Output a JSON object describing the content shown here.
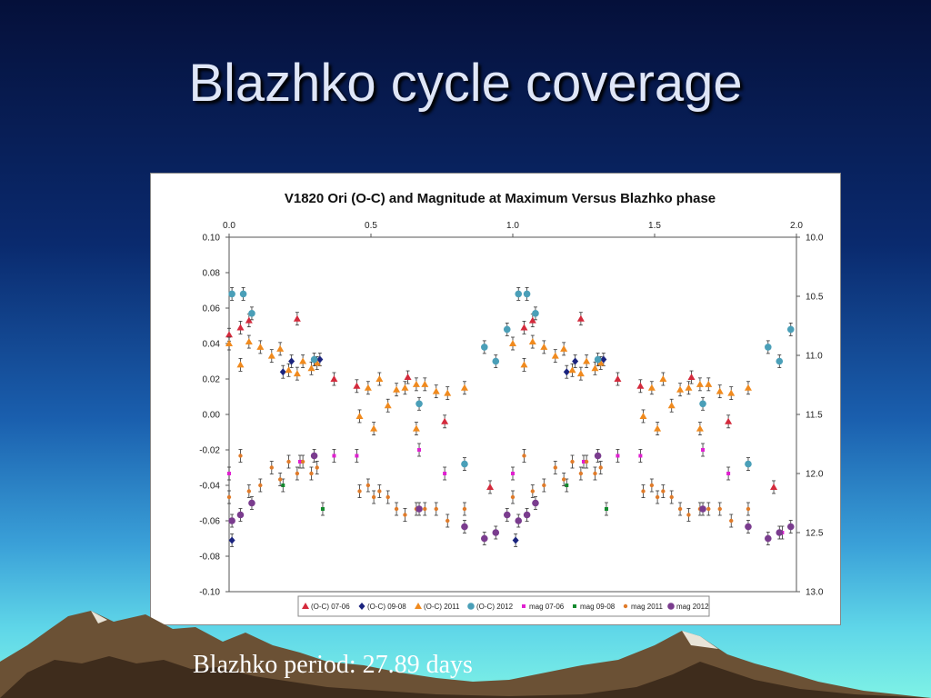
{
  "slide": {
    "title": "Blazhko cycle coverage",
    "caption": "Blazhko period: 27.89 days"
  },
  "chart_data": {
    "type": "scatter",
    "title": "V1820 Ori (O-C) and Magnitude at Maximum Versus Blazhko phase",
    "x_axis": {
      "position": "top",
      "range": [
        0,
        2.0
      ],
      "ticks": [
        "0.0",
        "0.5",
        "1.0",
        "1.5",
        "2.0"
      ]
    },
    "y_left": {
      "range": [
        -0.1,
        0.1
      ],
      "ticks": [
        "0.10",
        "0.08",
        "0.06",
        "0.04",
        "0.02",
        "0.00",
        "-0.02",
        "-0.04",
        "-0.06",
        "-0.08",
        "-0.10"
      ]
    },
    "y_right": {
      "range": [
        10.0,
        13.0
      ],
      "inverted": true,
      "ticks": [
        "10.0",
        "10.5",
        "11.0",
        "11.5",
        "12.0",
        "12.5",
        "13.0"
      ]
    },
    "legend_position": "bottom",
    "grid": false,
    "series": [
      {
        "name": "(O-C) 07-06",
        "axis": "left",
        "marker": "triangle",
        "color": "#d42a3c",
        "points": [
          [
            0.0,
            0.045
          ],
          [
            0.04,
            0.049
          ],
          [
            0.07,
            0.053
          ],
          [
            0.24,
            0.054
          ],
          [
            0.37,
            0.02
          ],
          [
            0.45,
            0.016
          ],
          [
            0.63,
            0.021
          ],
          [
            0.76,
            -0.004
          ],
          [
            0.92,
            -0.041
          ],
          [
            1.04,
            0.049
          ],
          [
            1.07,
            0.053
          ],
          [
            1.24,
            0.054
          ],
          [
            1.37,
            0.02
          ],
          [
            1.45,
            0.016
          ],
          [
            1.63,
            0.021
          ],
          [
            1.76,
            -0.004
          ],
          [
            1.92,
            -0.041
          ]
        ]
      },
      {
        "name": "(O-C) 09-08",
        "axis": "left",
        "marker": "diamond",
        "color": "#1a237e",
        "points": [
          [
            0.01,
            -0.071
          ],
          [
            0.19,
            0.024
          ],
          [
            0.22,
            0.03
          ],
          [
            0.32,
            0.031
          ],
          [
            1.01,
            -0.071
          ],
          [
            1.19,
            0.024
          ],
          [
            1.22,
            0.03
          ],
          [
            1.32,
            0.031
          ]
        ]
      },
      {
        "name": "(O-C) 2011",
        "axis": "left",
        "marker": "triangle",
        "color": "#f08a1e",
        "points": [
          [
            0.0,
            0.04
          ],
          [
            0.04,
            0.028
          ],
          [
            0.07,
            0.041
          ],
          [
            0.11,
            0.038
          ],
          [
            0.15,
            0.033
          ],
          [
            0.18,
            0.037
          ],
          [
            0.21,
            0.025
          ],
          [
            0.24,
            0.023
          ],
          [
            0.26,
            0.03
          ],
          [
            0.29,
            0.026
          ],
          [
            0.31,
            0.029
          ],
          [
            0.46,
            -0.001
          ],
          [
            0.49,
            0.015
          ],
          [
            0.51,
            -0.008
          ],
          [
            0.53,
            0.02
          ],
          [
            0.56,
            0.005
          ],
          [
            0.59,
            0.014
          ],
          [
            0.62,
            0.015
          ],
          [
            0.66,
            0.017
          ],
          [
            0.66,
            -0.008
          ],
          [
            0.69,
            0.017
          ],
          [
            0.73,
            0.013
          ],
          [
            0.77,
            0.012
          ],
          [
            0.83,
            0.015
          ],
          [
            1.0,
            0.04
          ],
          [
            1.04,
            0.028
          ],
          [
            1.07,
            0.041
          ],
          [
            1.11,
            0.038
          ],
          [
            1.15,
            0.033
          ],
          [
            1.18,
            0.037
          ],
          [
            1.21,
            0.025
          ],
          [
            1.24,
            0.023
          ],
          [
            1.26,
            0.03
          ],
          [
            1.29,
            0.026
          ],
          [
            1.31,
            0.029
          ],
          [
            1.46,
            -0.001
          ],
          [
            1.49,
            0.015
          ],
          [
            1.51,
            -0.008
          ],
          [
            1.53,
            0.02
          ],
          [
            1.56,
            0.005
          ],
          [
            1.59,
            0.014
          ],
          [
            1.62,
            0.015
          ],
          [
            1.66,
            0.017
          ],
          [
            1.66,
            -0.008
          ],
          [
            1.69,
            0.017
          ],
          [
            1.73,
            0.013
          ],
          [
            1.77,
            0.012
          ],
          [
            1.83,
            0.015
          ]
        ]
      },
      {
        "name": "(O-C) 2012",
        "axis": "left",
        "marker": "circle",
        "color": "#4a9fb8",
        "points": [
          [
            0.01,
            0.068
          ],
          [
            0.05,
            0.068
          ],
          [
            0.08,
            0.057
          ],
          [
            0.3,
            0.031
          ],
          [
            0.67,
            0.006
          ],
          [
            0.83,
            -0.028
          ],
          [
            0.9,
            0.038
          ],
          [
            0.94,
            0.03
          ],
          [
            0.98,
            0.048
          ],
          [
            1.02,
            0.068
          ],
          [
            1.05,
            0.068
          ],
          [
            1.08,
            0.057
          ],
          [
            1.3,
            0.031
          ],
          [
            1.67,
            0.006
          ],
          [
            1.83,
            -0.028
          ],
          [
            1.9,
            0.038
          ],
          [
            1.94,
            0.03
          ],
          [
            1.98,
            0.048
          ]
        ]
      },
      {
        "name": "mag 07-06",
        "axis": "right",
        "marker": "square",
        "color": "#e020d0",
        "points": [
          [
            0.0,
            12.0
          ],
          [
            0.25,
            11.9
          ],
          [
            0.37,
            11.85
          ],
          [
            0.45,
            11.85
          ],
          [
            0.67,
            11.8
          ],
          [
            0.76,
            12.0
          ],
          [
            1.0,
            12.0
          ],
          [
            1.25,
            11.9
          ],
          [
            1.37,
            11.85
          ],
          [
            1.45,
            11.85
          ],
          [
            1.67,
            11.8
          ],
          [
            1.76,
            12.0
          ],
          [
            1.95,
            12.5
          ]
        ]
      },
      {
        "name": "mag 09-08",
        "axis": "right",
        "marker": "square",
        "color": "#138a2e",
        "points": [
          [
            0.19,
            12.1
          ],
          [
            0.33,
            12.3
          ],
          [
            1.19,
            12.1
          ],
          [
            1.33,
            12.3
          ]
        ]
      },
      {
        "name": "mag 2011",
        "axis": "right",
        "marker": "circle",
        "color": "#e07b2a",
        "points": [
          [
            0.0,
            12.2
          ],
          [
            0.04,
            11.85
          ],
          [
            0.07,
            12.15
          ],
          [
            0.11,
            12.1
          ],
          [
            0.15,
            11.95
          ],
          [
            0.18,
            12.05
          ],
          [
            0.21,
            11.9
          ],
          [
            0.24,
            12.0
          ],
          [
            0.26,
            11.9
          ],
          [
            0.29,
            12.0
          ],
          [
            0.31,
            11.95
          ],
          [
            0.46,
            12.15
          ],
          [
            0.49,
            12.1
          ],
          [
            0.51,
            12.2
          ],
          [
            0.53,
            12.15
          ],
          [
            0.56,
            12.2
          ],
          [
            0.59,
            12.3
          ],
          [
            0.62,
            12.35
          ],
          [
            0.66,
            12.3
          ],
          [
            0.69,
            12.3
          ],
          [
            0.73,
            12.3
          ],
          [
            0.77,
            12.4
          ],
          [
            0.83,
            12.3
          ],
          [
            1.0,
            12.2
          ],
          [
            1.04,
            11.85
          ],
          [
            1.07,
            12.15
          ],
          [
            1.11,
            12.1
          ],
          [
            1.15,
            11.95
          ],
          [
            1.18,
            12.05
          ],
          [
            1.21,
            11.9
          ],
          [
            1.24,
            12.0
          ],
          [
            1.26,
            11.9
          ],
          [
            1.29,
            12.0
          ],
          [
            1.31,
            11.95
          ],
          [
            1.46,
            12.15
          ],
          [
            1.49,
            12.1
          ],
          [
            1.51,
            12.2
          ],
          [
            1.53,
            12.15
          ],
          [
            1.56,
            12.2
          ],
          [
            1.59,
            12.3
          ],
          [
            1.62,
            12.35
          ],
          [
            1.66,
            12.3
          ],
          [
            1.69,
            12.3
          ],
          [
            1.73,
            12.3
          ],
          [
            1.77,
            12.4
          ],
          [
            1.83,
            12.3
          ]
        ]
      },
      {
        "name": "mag 2012",
        "axis": "right",
        "marker": "circle",
        "color": "#7a3c8e",
        "points": [
          [
            0.01,
            12.4
          ],
          [
            0.04,
            12.35
          ],
          [
            0.08,
            12.25
          ],
          [
            0.3,
            11.85
          ],
          [
            0.67,
            12.3
          ],
          [
            0.83,
            12.45
          ],
          [
            0.9,
            12.55
          ],
          [
            0.94,
            12.5
          ],
          [
            0.98,
            12.35
          ],
          [
            1.02,
            12.4
          ],
          [
            1.05,
            12.35
          ],
          [
            1.08,
            12.25
          ],
          [
            1.3,
            11.85
          ],
          [
            1.67,
            12.3
          ],
          [
            1.83,
            12.45
          ],
          [
            1.9,
            12.55
          ],
          [
            1.94,
            12.5
          ],
          [
            1.98,
            12.45
          ]
        ]
      }
    ]
  }
}
